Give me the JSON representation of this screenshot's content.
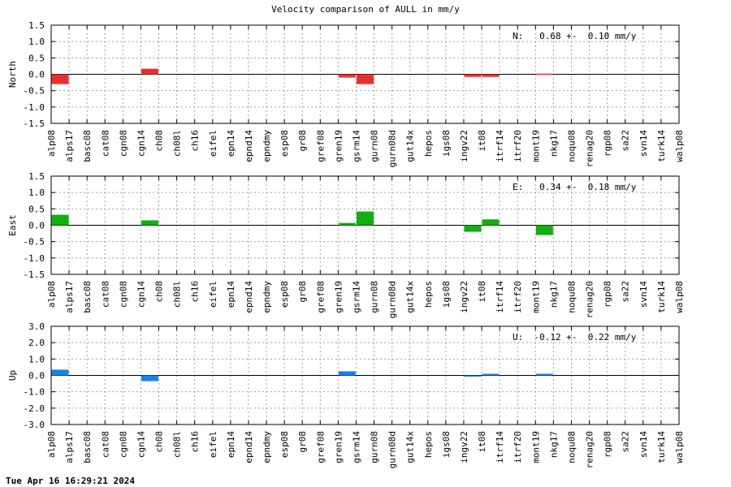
{
  "title": "Velocity comparison of AULL in mm/y",
  "timestamp": "Tue Apr 16 16:29:21 2024",
  "chart_data": {
    "type": "bar",
    "categories": [
      "alp08",
      "alps17",
      "basc08",
      "cat08",
      "cgn08",
      "cgn14",
      "ch08",
      "ch08l",
      "ch16",
      "eifel",
      "epn14",
      "epnd14",
      "epndmy",
      "esp08",
      "gr08",
      "gref08",
      "gren19",
      "gsrm14",
      "gurn08",
      "gurn08d",
      "gut14x",
      "hepos",
      "igs08",
      "ingv22",
      "it08",
      "itrf14",
      "itrf20",
      "mont19",
      "nkg17",
      "noqu08",
      "renag20",
      "rgp08",
      "sa22",
      "svn14",
      "turk14",
      "walp08"
    ],
    "panels": [
      {
        "ylabel": "North",
        "color": "#e83030",
        "ylim": [
          -1.5,
          1.5
        ],
        "yticks": [
          "1.5",
          "1.0",
          "0.5",
          "0.0",
          "-0.5",
          "-1.0",
          "-1.5"
        ],
        "annotation": "N:   0.68 +-  0.10 mm/y",
        "values": [
          -0.3,
          null,
          null,
          null,
          null,
          0.17,
          null,
          null,
          null,
          null,
          null,
          null,
          null,
          null,
          null,
          null,
          -0.1,
          -0.3,
          null,
          null,
          null,
          null,
          null,
          -0.08,
          -0.08,
          null,
          null,
          0.02,
          null,
          null,
          null,
          null,
          null,
          null,
          null,
          null
        ]
      },
      {
        "ylabel": "East",
        "color": "#10b010",
        "ylim": [
          -1.5,
          1.5
        ],
        "yticks": [
          "1.5",
          "1.0",
          "0.5",
          "0.0",
          "-0.5",
          "-1.0",
          "-1.5"
        ],
        "annotation": "E:   0.34 +-  0.18 mm/y",
        "values": [
          0.32,
          null,
          null,
          null,
          null,
          0.15,
          null,
          null,
          null,
          null,
          null,
          null,
          null,
          null,
          null,
          null,
          0.07,
          0.42,
          null,
          null,
          null,
          null,
          null,
          -0.2,
          0.18,
          null,
          null,
          -0.3,
          null,
          null,
          null,
          null,
          null,
          null,
          null,
          null
        ]
      },
      {
        "ylabel": "Up",
        "color": "#1a80f0",
        "ylim": [
          -3.0,
          3.0
        ],
        "yticks": [
          "3.0",
          "2.0",
          "1.0",
          "0.0",
          "-1.0",
          "-2.0",
          "-3.0"
        ],
        "annotation": "U:  -0.12 +-  0.22 mm/y",
        "values": [
          0.35,
          null,
          null,
          null,
          null,
          -0.35,
          null,
          null,
          null,
          null,
          null,
          null,
          null,
          null,
          null,
          null,
          0.25,
          null,
          null,
          null,
          null,
          null,
          null,
          -0.05,
          0.1,
          null,
          null,
          0.1,
          null,
          null,
          null,
          null,
          null,
          null,
          null,
          null
        ]
      }
    ]
  }
}
